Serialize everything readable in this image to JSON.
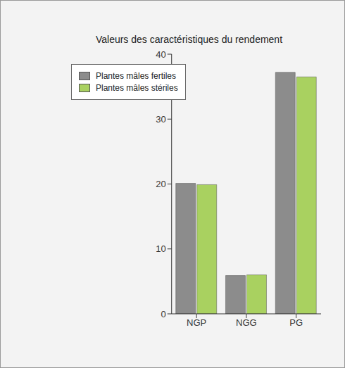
{
  "chart_data": {
    "type": "bar",
    "title": "Valeurs des caractéristiques du rendement",
    "categories": [
      "NGP",
      "NGG",
      "PG"
    ],
    "series": [
      {
        "name": "Plantes mâles fertiles",
        "color": "#8c8c8c",
        "values": [
          20.1,
          5.9,
          37.2
        ]
      },
      {
        "name": "Plantes mâles stériles",
        "color": "#a9d160",
        "values": [
          19.9,
          6.0,
          36.5
        ]
      }
    ],
    "ylim": [
      0,
      40
    ],
    "yticks": [
      0,
      10,
      20,
      30,
      40
    ],
    "grid": false,
    "legend": "upper left"
  }
}
